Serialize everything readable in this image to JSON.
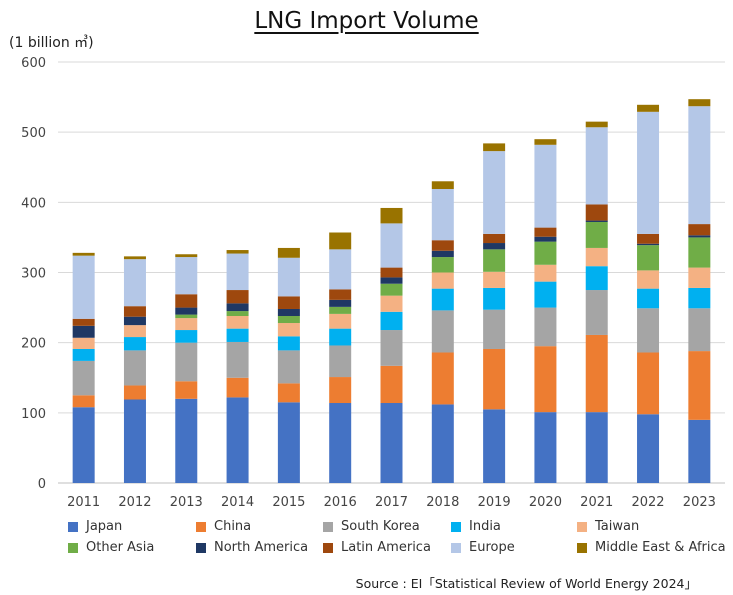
{
  "chart_data": {
    "type": "bar",
    "stacked": true,
    "title": "LNG Import Volume",
    "ylabel": "(1 billion ㎥)",
    "ylim": [
      0,
      600
    ],
    "yticks": [
      0,
      100,
      200,
      300,
      400,
      500,
      600
    ],
    "grid": true,
    "legend_position": "bottom",
    "categories": [
      "2011",
      "2012",
      "2013",
      "2014",
      "2015",
      "2016",
      "2017",
      "2018",
      "2019",
      "2020",
      "2021",
      "2022",
      "2023"
    ],
    "series": [
      {
        "name": "Japan",
        "color": "#4472C4",
        "values": [
          108,
          119,
          120,
          122,
          115,
          114,
          114,
          112,
          105,
          101,
          101,
          98,
          90
        ]
      },
      {
        "name": "China",
        "color": "#ED7D31",
        "values": [
          17,
          20,
          25,
          28,
          27,
          37,
          53,
          74,
          86,
          94,
          110,
          88,
          98
        ]
      },
      {
        "name": "South Korea",
        "color": "#A5A5A5",
        "values": [
          49,
          50,
          55,
          51,
          47,
          45,
          51,
          60,
          56,
          55,
          64,
          63,
          61
        ]
      },
      {
        "name": "India",
        "color": "#00B0F0",
        "values": [
          17,
          19,
          18,
          19,
          20,
          24,
          26,
          31,
          31,
          37,
          34,
          28,
          29
        ]
      },
      {
        "name": "Taiwan",
        "color": "#F4B183",
        "values": [
          16,
          17,
          17,
          18,
          19,
          21,
          23,
          23,
          23,
          24,
          26,
          26,
          29
        ]
      },
      {
        "name": "Other Asia",
        "color": "#70AD47",
        "values": [
          0,
          0,
          5,
          7,
          10,
          10,
          17,
          22,
          32,
          33,
          37,
          36,
          43
        ]
      },
      {
        "name": "North America",
        "color": "#1F3864",
        "values": [
          17,
          12,
          10,
          11,
          10,
          10,
          9,
          9,
          9,
          7,
          2,
          2,
          3
        ]
      },
      {
        "name": "Latin America",
        "color": "#9E480E",
        "values": [
          10,
          15,
          19,
          19,
          18,
          15,
          14,
          15,
          13,
          13,
          23,
          14,
          16
        ]
      },
      {
        "name": "Europe",
        "color": "#B4C7E7",
        "values": [
          90,
          67,
          53,
          52,
          55,
          57,
          63,
          73,
          118,
          118,
          110,
          174,
          168
        ]
      },
      {
        "name": "Middle East & Africa",
        "color": "#997300",
        "values": [
          4,
          4,
          4,
          5,
          14,
          24,
          22,
          11,
          11,
          8,
          8,
          10,
          10
        ]
      }
    ]
  },
  "source": "Source : EI「Statistical Review of World Energy 2024」"
}
